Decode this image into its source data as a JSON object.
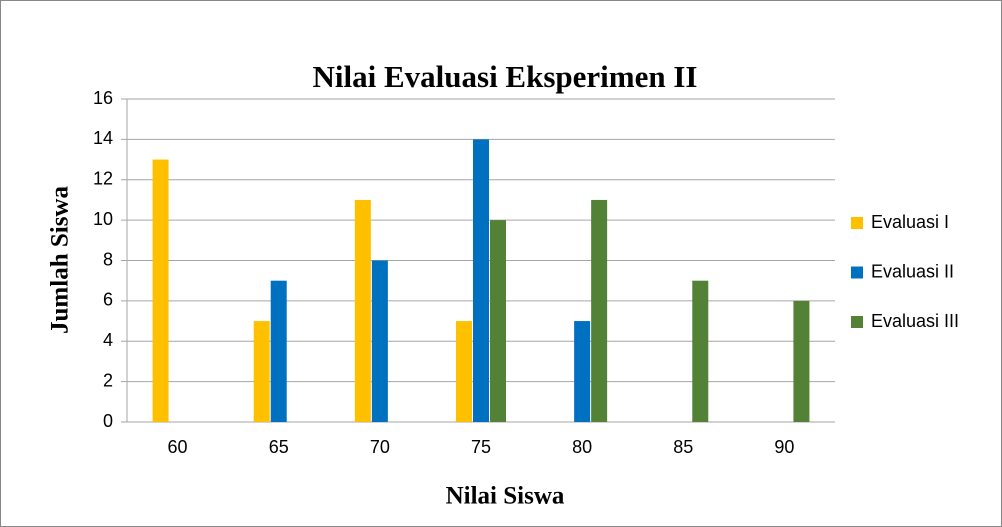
{
  "chart_data": {
    "type": "bar",
    "title": "Nilai Evaluasi Eksperimen II",
    "x_label": "Nilai Siswa",
    "y_label": "Jumlah Siswa",
    "categories": [
      "60",
      "65",
      "70",
      "75",
      "80",
      "85",
      "90"
    ],
    "series": [
      {
        "name": "Evaluasi I",
        "color": "#ffc000",
        "values": [
          13,
          5,
          11,
          5,
          0,
          0,
          0
        ]
      },
      {
        "name": "Evaluasi II",
        "color": "#0070c0",
        "values": [
          0,
          7,
          8,
          14,
          5,
          0,
          0
        ]
      },
      {
        "name": "Evaluasi III",
        "color": "#538135",
        "values": [
          0,
          0,
          0,
          10,
          11,
          7,
          6
        ]
      }
    ],
    "ylim": [
      0,
      16
    ],
    "yticks": [
      0,
      2,
      4,
      6,
      8,
      10,
      12,
      14,
      16
    ],
    "grid": true,
    "legend": "right"
  }
}
